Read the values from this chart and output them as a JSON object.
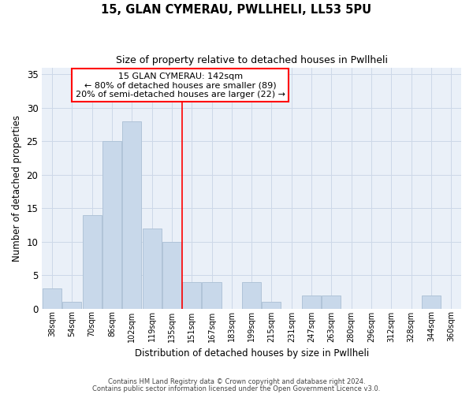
{
  "title1": "15, GLAN CYMERAU, PWLLHELI, LL53 5PU",
  "title2": "Size of property relative to detached houses in Pwllheli",
  "xlabel": "Distribution of detached houses by size in Pwllheli",
  "ylabel": "Number of detached properties",
  "categories": [
    "38sqm",
    "54sqm",
    "70sqm",
    "86sqm",
    "102sqm",
    "119sqm",
    "135sqm",
    "151sqm",
    "167sqm",
    "183sqm",
    "199sqm",
    "215sqm",
    "231sqm",
    "247sqm",
    "263sqm",
    "280sqm",
    "296sqm",
    "312sqm",
    "328sqm",
    "344sqm",
    "360sqm"
  ],
  "values": [
    3,
    1,
    14,
    25,
    28,
    12,
    10,
    4,
    4,
    0,
    4,
    1,
    0,
    2,
    2,
    0,
    0,
    0,
    0,
    2,
    0
  ],
  "bar_color": "#c8d8ea",
  "bar_edge_color": "#b0c4d8",
  "grid_color": "#cdd8e8",
  "background_color": "#eaf0f8",
  "annotation_box_text": "15 GLAN CYMERAU: 142sqm\n← 80% of detached houses are smaller (89)\n20% of semi-detached houses are larger (22) →",
  "vline_x_index": 6.5,
  "ylim": [
    0,
    36
  ],
  "yticks": [
    0,
    5,
    10,
    15,
    20,
    25,
    30,
    35
  ],
  "footer1": "Contains HM Land Registry data © Crown copyright and database right 2024.",
  "footer2": "Contains public sector information licensed under the Open Government Licence v3.0."
}
